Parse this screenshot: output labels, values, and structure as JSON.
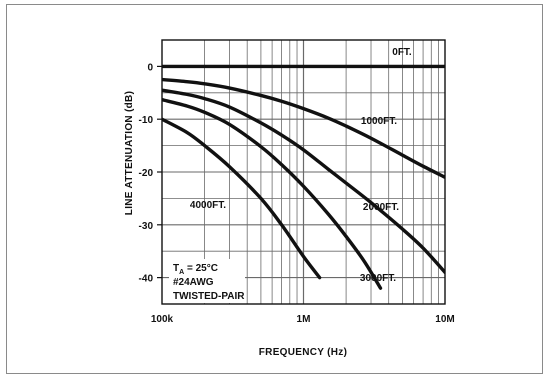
{
  "chart_data": {
    "type": "line",
    "title": "",
    "xlabel": "FREQUENCY (Hz)",
    "ylabel": "LINE ATTENUATION (dB)",
    "xscale": "log",
    "xlim": [
      100000,
      10000000
    ],
    "ylim": [
      -45,
      5
    ],
    "grid": true,
    "legend": "none (curve labels drawn inline)",
    "x_ticks": [
      {
        "value": 100000,
        "label": "100k"
      },
      {
        "value": 1000000,
        "label": "1M"
      },
      {
        "value": 10000000,
        "label": "10M"
      }
    ],
    "y_ticks": [
      {
        "value": 0,
        "label": "0"
      },
      {
        "value": -10,
        "label": "-10"
      },
      {
        "value": -20,
        "label": "-20"
      },
      {
        "value": -30,
        "label": "-30"
      },
      {
        "value": -40,
        "label": "-40"
      }
    ],
    "series": [
      {
        "name": "0FT.",
        "x": [
          100000,
          10000000
        ],
        "y": [
          0,
          0
        ]
      },
      {
        "name": "1000FT.",
        "x": [
          100000,
          150000,
          200000,
          300000,
          500000,
          700000,
          1000000,
          1500000,
          2000000,
          3000000,
          5000000,
          7000000,
          10000000
        ],
        "y": [
          -2.5,
          -2.9,
          -3.3,
          -4.1,
          -5.5,
          -6.6,
          -8.0,
          -9.8,
          -11.3,
          -13.6,
          -16.8,
          -18.9,
          -21.0
        ]
      },
      {
        "name": "2000FT.",
        "x": [
          100000,
          150000,
          200000,
          300000,
          500000,
          700000,
          1000000,
          1500000,
          2000000,
          3000000,
          5000000,
          7000000,
          10000000
        ],
        "y": [
          -4.5,
          -5.3,
          -6.1,
          -7.7,
          -10.7,
          -13.0,
          -15.8,
          -19.5,
          -22.1,
          -25.8,
          -30.8,
          -34.4,
          -39.0
        ]
      },
      {
        "name": "3000FT.",
        "x": [
          100000,
          150000,
          200000,
          300000,
          500000,
          700000,
          1000000,
          1500000,
          2000000,
          2700000,
          3500000
        ],
        "y": [
          -6.3,
          -7.5,
          -8.7,
          -11.0,
          -15.2,
          -18.6,
          -22.7,
          -28.0,
          -32.2,
          -37.0,
          -42.0
        ]
      },
      {
        "name": "4000FT.",
        "x": [
          100000,
          150000,
          200000,
          300000,
          500000,
          700000,
          1000000,
          1300000
        ],
        "y": [
          -10.0,
          -12.5,
          -15.0,
          -19.0,
          -25.0,
          -30.0,
          -36.0,
          -40.0
        ]
      }
    ],
    "annotations": {
      "ta_prefix": "T",
      "ta_subscript": "A",
      "ta_value": " = 25°C",
      "line2": "#24AWG",
      "line3": "TWISTED-PAIR"
    },
    "colors": {
      "curve": "#111111",
      "grid": "#6a6a6a",
      "axis": "#111111"
    }
  }
}
